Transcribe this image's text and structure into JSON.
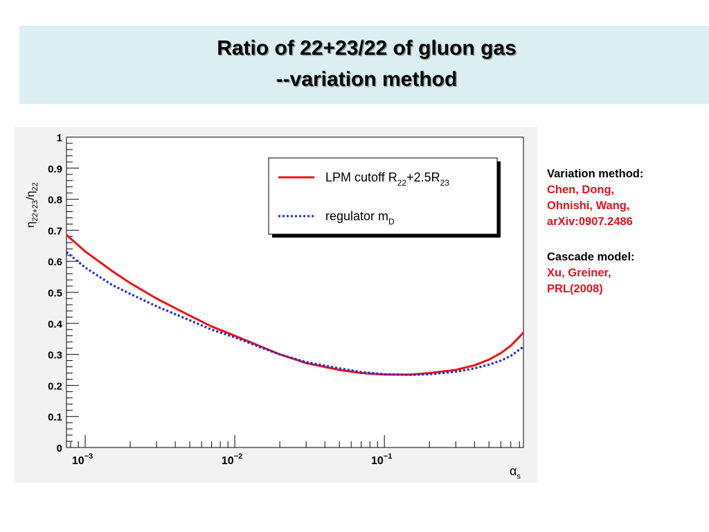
{
  "slide": {
    "title_line1": "Ratio of 22+23/22 of gluon gas",
    "title_line2": "--variation method"
  },
  "notes": [
    {
      "heading": "Variation method:",
      "lines": [
        "Chen, Dong,",
        "Ohnishi,  Wang,",
        "arXiv:0907.2486"
      ]
    },
    {
      "heading": "Cascade model:",
      "lines": [
        "Xu, Greiner,",
        "PRL(2008)"
      ]
    }
  ],
  "colors": {
    "title_bg": "#dbeef1",
    "series_red": "#ee1111",
    "series_blue": "#1a2bdd",
    "reference_text": "#e0141a",
    "plot_bg": "#f2f2f2"
  },
  "chart_data": {
    "type": "line",
    "x_scale": "log",
    "xlim": [
      0.00075,
      0.85
    ],
    "ylim": [
      0,
      1
    ],
    "xlabel": "α",
    "xlabel_sub": "s",
    "ylabel_main": "η",
    "ylabel_sub1": "22+23",
    "ylabel_sep": "/η",
    "ylabel_sub2": "22",
    "x_ticks": [
      {
        "value": 0.001,
        "base": "10",
        "exp": "−3"
      },
      {
        "value": 0.01,
        "base": "10",
        "exp": "−2"
      },
      {
        "value": 0.1,
        "base": "10",
        "exp": "−1"
      }
    ],
    "y_ticks": [
      {
        "value": 0,
        "label": "0"
      },
      {
        "value": 0.1,
        "label": "0.1"
      },
      {
        "value": 0.2,
        "label": "0.2"
      },
      {
        "value": 0.3,
        "label": "0.3"
      },
      {
        "value": 0.4,
        "label": "0.4"
      },
      {
        "value": 0.5,
        "label": "0.5"
      },
      {
        "value": 0.6,
        "label": "0.6"
      },
      {
        "value": 0.7,
        "label": "0.7"
      },
      {
        "value": 0.8,
        "label": "0.8"
      },
      {
        "value": 0.9,
        "label": "0.9"
      },
      {
        "value": 1,
        "label": "1"
      }
    ],
    "grid": false,
    "legend_position": "top-right",
    "series": [
      {
        "legend_text": "LPM cutoff R",
        "legend_parts": [
          {
            "text": "LPM cutoff R",
            "sub": false
          },
          {
            "text": "22",
            "sub": true
          },
          {
            "text": "+2.5R",
            "sub": false
          },
          {
            "text": "23",
            "sub": true
          }
        ],
        "style": "solid",
        "color": "#ee1111",
        "x": [
          0.00075,
          0.001,
          0.0015,
          0.002,
          0.003,
          0.005,
          0.007,
          0.01,
          0.015,
          0.02,
          0.03,
          0.05,
          0.07,
          0.1,
          0.15,
          0.2,
          0.3,
          0.4,
          0.5,
          0.6,
          0.7,
          0.85
        ],
        "y": [
          0.685,
          0.632,
          0.57,
          0.53,
          0.48,
          0.425,
          0.39,
          0.36,
          0.325,
          0.3,
          0.272,
          0.25,
          0.24,
          0.235,
          0.235,
          0.24,
          0.25,
          0.265,
          0.283,
          0.304,
          0.328,
          0.37
        ]
      },
      {
        "legend_text": "regulator m",
        "legend_parts": [
          {
            "text": "regulator m",
            "sub": false
          },
          {
            "text": "D",
            "sub": true
          }
        ],
        "style": "dotted",
        "color": "#1a2bdd",
        "x": [
          0.00075,
          0.001,
          0.0015,
          0.002,
          0.003,
          0.005,
          0.007,
          0.01,
          0.015,
          0.02,
          0.03,
          0.05,
          0.07,
          0.1,
          0.15,
          0.2,
          0.3,
          0.4,
          0.5,
          0.6,
          0.7,
          0.85
        ],
        "y": [
          0.63,
          0.58,
          0.525,
          0.495,
          0.455,
          0.41,
          0.38,
          0.355,
          0.322,
          0.3,
          0.275,
          0.255,
          0.243,
          0.236,
          0.234,
          0.236,
          0.244,
          0.255,
          0.267,
          0.28,
          0.295,
          0.325
        ]
      }
    ]
  }
}
